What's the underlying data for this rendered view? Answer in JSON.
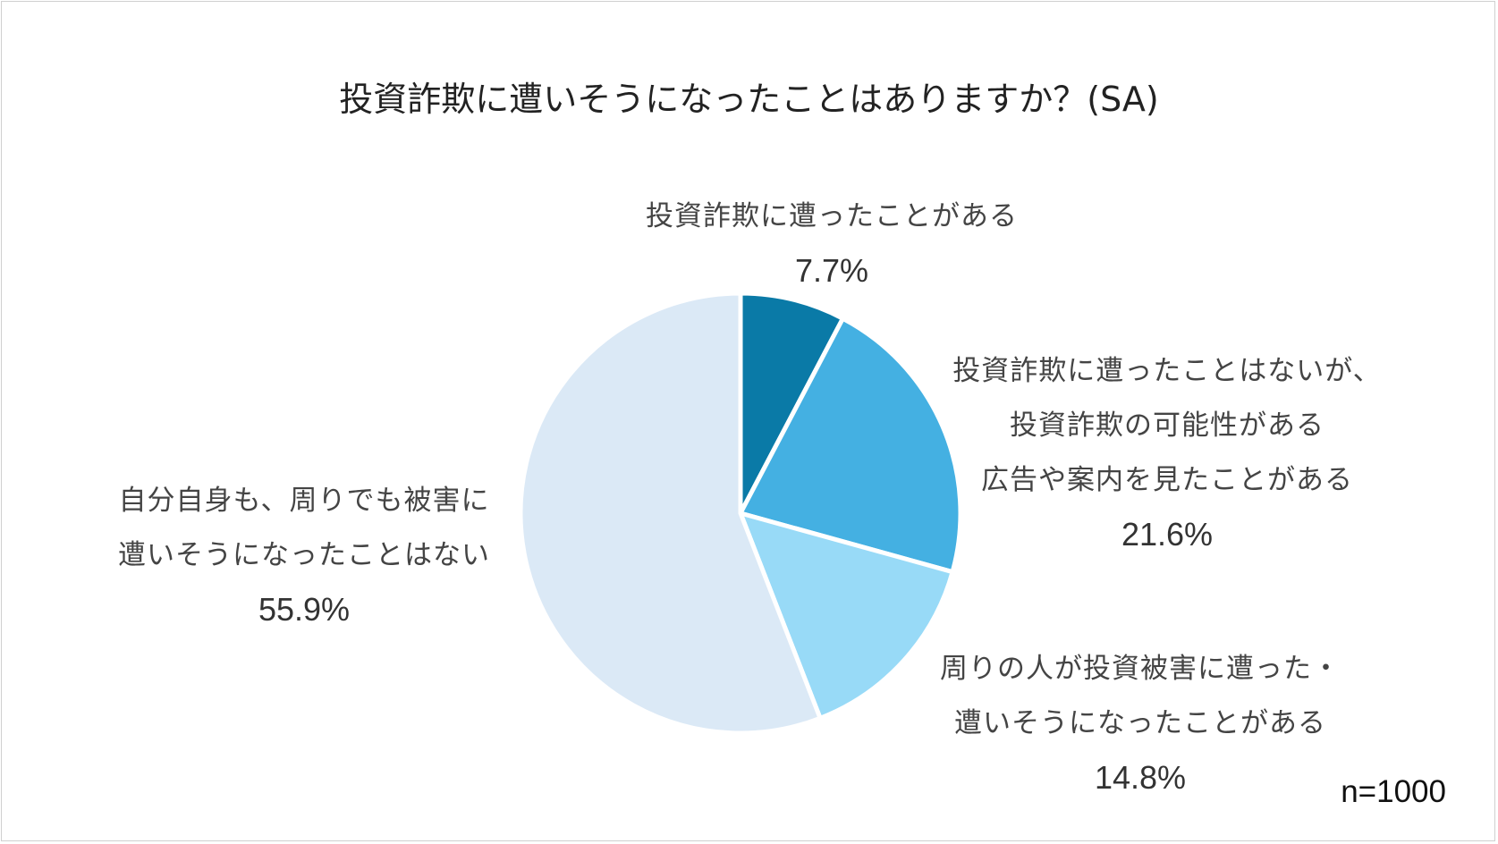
{
  "chart_data": {
    "type": "pie",
    "title": "投資詐欺に遭いそうになったことはありますか？(SA)",
    "slices": [
      {
        "label_lines": [
          "投資詐欺に遭ったことがある"
        ],
        "value": 7.7,
        "value_label": "7.7%",
        "color": "#0a7aa7"
      },
      {
        "label_lines": [
          "投資詐欺に遭ったことはないが、",
          "投資詐欺の可能性がある",
          "広告や案内を見たことがある"
        ],
        "value": 21.6,
        "value_label": "21.6%",
        "color": "#44b0e2"
      },
      {
        "label_lines": [
          "周りの人が投資被害に遭った・",
          "遭いそうになったことがある"
        ],
        "value": 14.8,
        "value_label": "14.8%",
        "color": "#98daf7"
      },
      {
        "label_lines": [
          "自分自身も、周りでも被害に",
          "遭いそうになったことはない"
        ],
        "value": 55.9,
        "value_label": "55.9%",
        "color": "#dbe9f6"
      }
    ],
    "note": "n=1000"
  }
}
